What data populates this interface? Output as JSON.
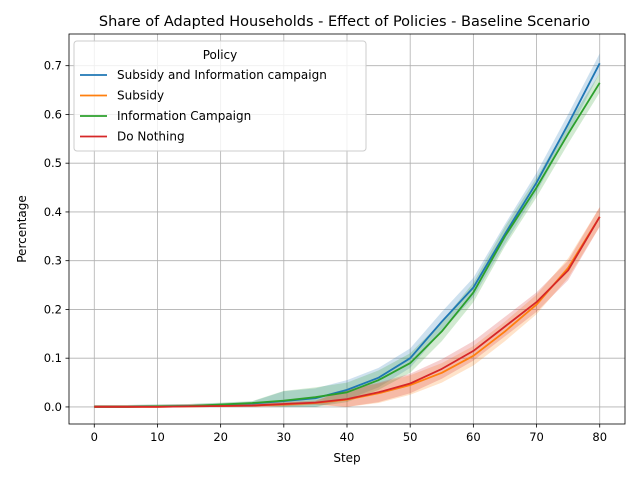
{
  "chart_data": {
    "type": "line",
    "title": "Share of Adapted Households - Effect of Policies - Baseline Scenario",
    "xlabel": "Step",
    "ylabel": "Percentage",
    "xlim": [
      -4,
      84
    ],
    "ylim": [
      -0.035,
      0.765
    ],
    "xticks": [
      0,
      10,
      20,
      30,
      40,
      50,
      60,
      70,
      80
    ],
    "xtick_labels": [
      "0",
      "10",
      "20",
      "30",
      "40",
      "50",
      "60",
      "70",
      "80"
    ],
    "yticks": [
      0.0,
      0.1,
      0.2,
      0.3,
      0.4,
      0.5,
      0.6,
      0.7
    ],
    "ytick_labels": [
      "0.0",
      "0.1",
      "0.2",
      "0.3",
      "0.4",
      "0.5",
      "0.6",
      "0.7"
    ],
    "grid": true,
    "legend": {
      "title": "Policy",
      "placement": "upper-left"
    },
    "x": [
      0,
      5,
      10,
      15,
      20,
      25,
      30,
      35,
      40,
      45,
      50,
      55,
      60,
      65,
      70,
      75,
      80
    ],
    "series": [
      {
        "name": "Subsidy and Information campaign",
        "color": "#1f77b4",
        "values": [
          0.0,
          0.0,
          0.001,
          0.002,
          0.004,
          0.007,
          0.012,
          0.018,
          0.035,
          0.06,
          0.1,
          0.175,
          0.245,
          0.355,
          0.46,
          0.58,
          0.705
        ],
        "band": 0.02
      },
      {
        "name": "Subsidy",
        "color": "#ff7f0e",
        "values": [
          0.0,
          0.0,
          0.0,
          0.001,
          0.002,
          0.003,
          0.005,
          0.008,
          0.015,
          0.028,
          0.045,
          0.07,
          0.105,
          0.155,
          0.21,
          0.285,
          0.39
        ],
        "band": 0.02
      },
      {
        "name": "Information Campaign",
        "color": "#2ca02c",
        "values": [
          0.0,
          0.0,
          0.001,
          0.002,
          0.005,
          0.008,
          0.013,
          0.02,
          0.03,
          0.055,
          0.09,
          0.155,
          0.235,
          0.35,
          0.45,
          0.56,
          0.665
        ],
        "band": 0.02
      },
      {
        "name": "Do Nothing",
        "color": "#d62728",
        "values": [
          0.0,
          0.0,
          0.0,
          0.001,
          0.002,
          0.003,
          0.006,
          0.009,
          0.016,
          0.03,
          0.048,
          0.078,
          0.115,
          0.165,
          0.215,
          0.28,
          0.39
        ],
        "band": 0.02
      }
    ]
  }
}
